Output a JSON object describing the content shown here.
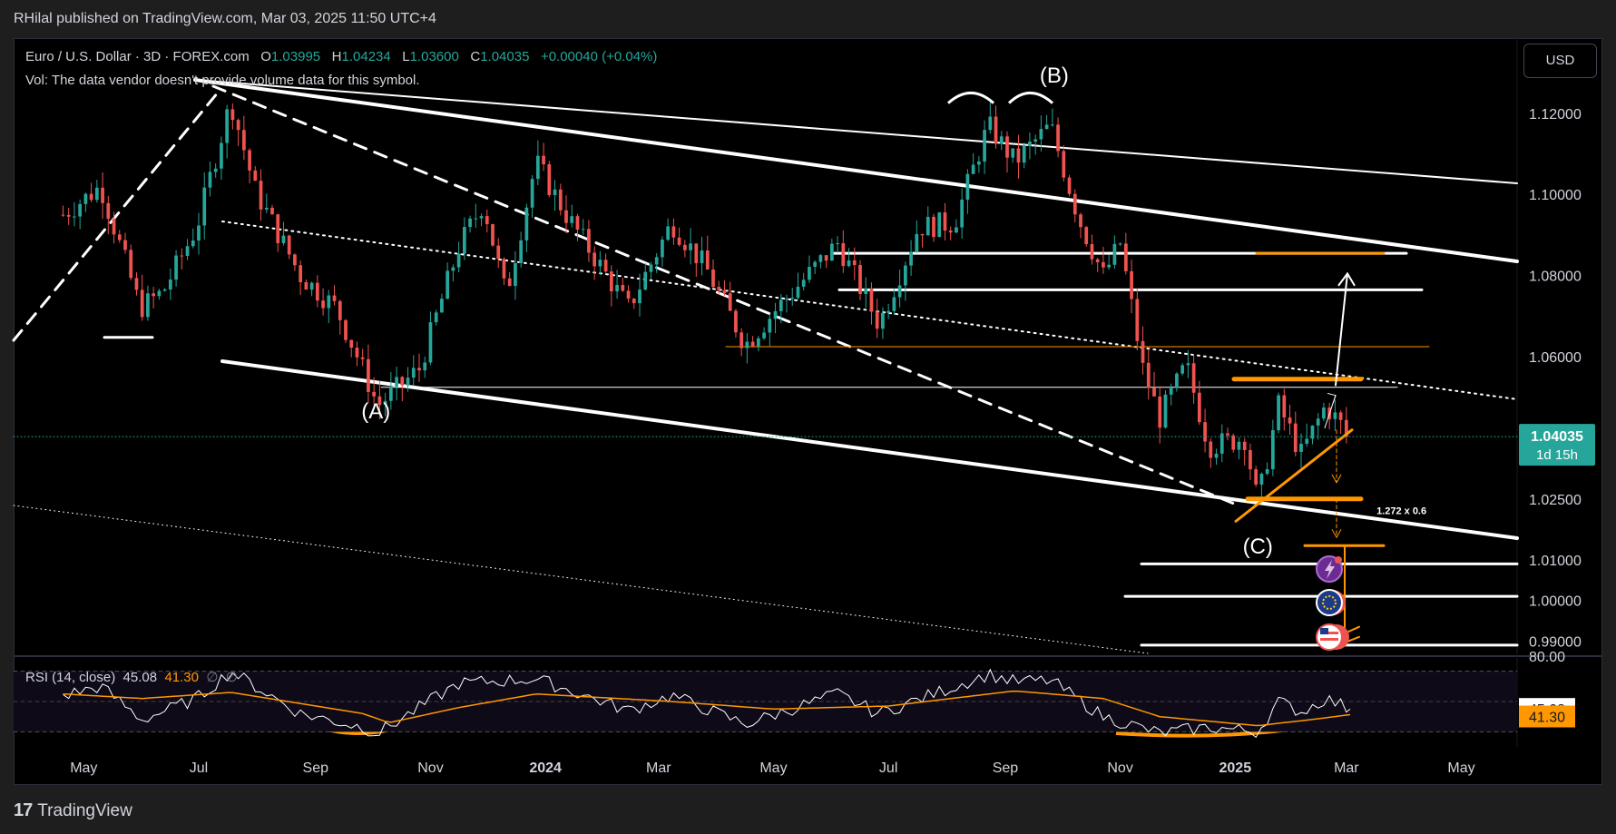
{
  "publisher": "RHilal published on TradingView.com, Mar 03, 2025 11:50 UTC+4",
  "symbol_line": {
    "symbol": "Euro / U.S. Dollar · 3D · FOREX.com",
    "o_label": "O",
    "o": "1.03995",
    "h_label": "H",
    "h": "1.04234",
    "l_label": "L",
    "l": "1.03600",
    "c_label": "C",
    "c": "1.04035",
    "change": "+0.00040 (+0.04%)"
  },
  "volume_note": "Vol: The data vendor doesn't provide volume data for this symbol.",
  "currency_button": "USD",
  "rsi_legend": {
    "label": "RSI (14, close)",
    "rsi": "45.08",
    "ma": "41.30",
    "extra1": "∅",
    "extra2": "∅"
  },
  "footer": {
    "logo_mark": "17",
    "logo_text": "TradingView"
  },
  "colors": {
    "up": "#26a69a",
    "down": "#ef5350",
    "accent": "#ff9800",
    "background": "#000000",
    "annotation": "#ffffff"
  },
  "icons": [
    "lightning-event-icon",
    "eu-flag-event-icon",
    "us-flag-event-icon"
  ],
  "chart_data": [
    {
      "type": "candlestick",
      "title": "Euro / U.S. Dollar · 3D · FOREX.com",
      "x_tick_labels": [
        "May",
        "Jul",
        "Sep",
        "Nov",
        "2024",
        "Mar",
        "May",
        "Jul",
        "Sep",
        "Nov",
        "2025",
        "Mar",
        "May"
      ],
      "y_tick_labels": [
        "1.12000",
        "1.10000",
        "1.08000",
        "1.06000",
        "1.04035",
        "1.02500",
        "1.01000",
        "1.00000",
        "0.99000"
      ],
      "ylim": [
        0.9865,
        1.1385
      ],
      "last_price": {
        "value": 1.04035,
        "label": "1.04035",
        "countdown": "1d 15h"
      },
      "close_path": [
        [
          "2023-04-20",
          1.095
        ],
        [
          "2023-05-10",
          1.102
        ],
        [
          "2023-05-31",
          1.072
        ],
        [
          "2023-06-12",
          1.076
        ],
        [
          "2023-06-30",
          1.092
        ],
        [
          "2023-07-18",
          1.123
        ],
        [
          "2023-07-31",
          1.101
        ],
        [
          "2023-08-24",
          1.08
        ],
        [
          "2023-09-12",
          1.072
        ],
        [
          "2023-09-26",
          1.057
        ],
        [
          "2023-10-04",
          1.048
        ],
        [
          "2023-10-26",
          1.057
        ],
        [
          "2023-11-16",
          1.087
        ],
        [
          "2023-11-29",
          1.098
        ],
        [
          "2023-12-11",
          1.075
        ],
        [
          "2023-12-27",
          1.108
        ],
        [
          "2024-01-12",
          1.095
        ],
        [
          "2024-02-14",
          1.072
        ],
        [
          "2024-03-08",
          1.093
        ],
        [
          "2024-03-26",
          1.082
        ],
        [
          "2024-04-16",
          1.063
        ],
        [
          "2024-05-03",
          1.072
        ],
        [
          "2024-06-04",
          1.088
        ],
        [
          "2024-06-26",
          1.068
        ],
        [
          "2024-07-17",
          1.092
        ],
        [
          "2024-08-05",
          1.093
        ],
        [
          "2024-08-23",
          1.117
        ],
        [
          "2024-09-06",
          1.108
        ],
        [
          "2024-09-25",
          1.117
        ],
        [
          "2024-10-10",
          1.094
        ],
        [
          "2024-10-23",
          1.08
        ],
        [
          "2024-11-01",
          1.088
        ],
        [
          "2024-11-13",
          1.057
        ],
        [
          "2024-11-22",
          1.045
        ],
        [
          "2024-12-06",
          1.058
        ],
        [
          "2024-12-18",
          1.038
        ],
        [
          "2025-01-06",
          1.04
        ],
        [
          "2025-01-13",
          1.024
        ],
        [
          "2025-01-24",
          1.048
        ],
        [
          "2025-02-05",
          1.036
        ],
        [
          "2025-02-18",
          1.048
        ],
        [
          "2025-03-03",
          1.04035
        ]
      ],
      "annotations": [
        {
          "text": "(A)",
          "date": "2023-10-03",
          "price": 1.0448
        },
        {
          "text": "(B)",
          "date": "2024-09-27",
          "price": 1.1275
        },
        {
          "text": "(C)",
          "date": "2025-01-13",
          "price": 1.0115
        },
        {
          "text": "1.272 x 0.6",
          "date": "2025-03-17",
          "price": 1.0213
        }
      ],
      "levels": [
        1.0855,
        1.0765,
        1.0625,
        1.0525,
        1.0545,
        1.025,
        1.013,
        1.009,
        1.001,
        0.989
      ]
    },
    {
      "type": "line",
      "title": "RSI (14, close)",
      "y_tick_labels": [
        "80.00"
      ],
      "ylim": [
        20,
        80
      ],
      "current": {
        "rsi": 45.08,
        "ma": 41.3
      },
      "series": [
        {
          "name": "RSI",
          "values": [
            [
              "2023-04-20",
              54
            ],
            [
              "2023-05-10",
              60
            ],
            [
              "2023-06-01",
              38
            ],
            [
              "2023-06-30",
              52
            ],
            [
              "2023-07-18",
              70
            ],
            [
              "2023-08-24",
              42
            ],
            [
              "2023-09-26",
              33
            ],
            [
              "2023-10-04",
              29
            ],
            [
              "2023-11-16",
              62
            ],
            [
              "2023-12-27",
              65
            ],
            [
              "2024-02-14",
              44
            ],
            [
              "2024-03-08",
              54
            ],
            [
              "2024-04-16",
              35
            ],
            [
              "2024-06-04",
              55
            ],
            [
              "2024-06-26",
              42
            ],
            [
              "2024-08-23",
              68
            ],
            [
              "2024-09-06",
              63
            ],
            [
              "2024-09-25",
              64
            ],
            [
              "2024-10-23",
              40
            ],
            [
              "2024-11-22",
              29
            ],
            [
              "2024-12-18",
              33
            ],
            [
              "2025-01-13",
              30
            ],
            [
              "2025-01-24",
              50
            ],
            [
              "2025-02-05",
              43
            ],
            [
              "2025-02-18",
              52
            ],
            [
              "2025-03-03",
              45.08
            ]
          ]
        },
        {
          "name": "RSI MA",
          "values": [
            [
              "2023-04-20",
              55
            ],
            [
              "2023-06-01",
              52
            ],
            [
              "2023-07-18",
              56
            ],
            [
              "2023-09-26",
              42
            ],
            [
              "2023-10-10",
              36
            ],
            [
              "2023-11-16",
              46
            ],
            [
              "2023-12-27",
              55
            ],
            [
              "2024-03-08",
              50
            ],
            [
              "2024-05-01",
              45
            ],
            [
              "2024-07-01",
              47
            ],
            [
              "2024-09-06",
              57
            ],
            [
              "2024-10-23",
              52
            ],
            [
              "2024-11-22",
              40
            ],
            [
              "2025-01-13",
              34
            ],
            [
              "2025-02-10",
              38
            ],
            [
              "2025-03-03",
              41.3
            ]
          ]
        }
      ]
    }
  ]
}
